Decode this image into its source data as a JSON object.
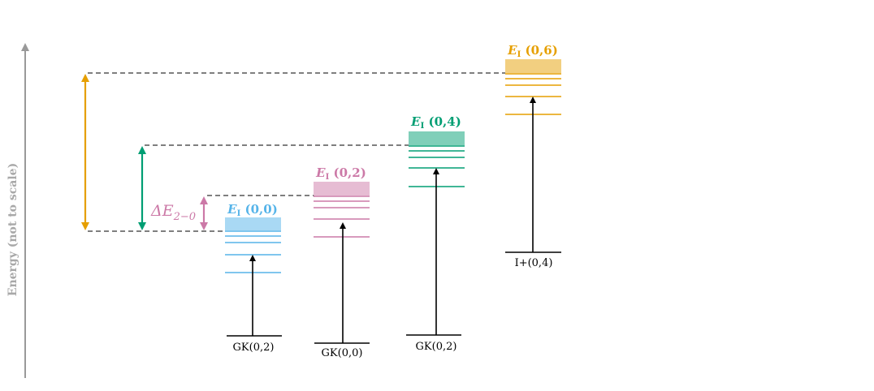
{
  "axis": {
    "ylabel": "Energy (not to scale)"
  },
  "colors": {
    "blue": "#56b4e9",
    "blue_fill": "#a9d9f4",
    "pink": "#cc79a7",
    "pink_fill": "#e6bcd3",
    "green": "#009e73",
    "green_fill": "#80cfb9",
    "orange": "#e69f00",
    "orange_fill": "#f2cf80",
    "axis": "#999999"
  },
  "states": [
    {
      "id": "e00",
      "label_main": "E",
      "label_sub": "I",
      "label_args": " (0,0)",
      "base_label": "GK(0,2)",
      "color": "#56b4e9",
      "fill": "#a9d9f4"
    },
    {
      "id": "e02",
      "label_main": "E",
      "label_sub": "I",
      "label_args": " (0,2)",
      "base_label": "GK(0,0)",
      "color": "#cc79a7",
      "fill": "#e6bcd3"
    },
    {
      "id": "e04",
      "label_main": "E",
      "label_sub": "I",
      "label_args": " (0,4)",
      "base_label": "GK(0,2)",
      "color": "#009e73",
      "fill": "#80cfb9"
    },
    {
      "id": "e06",
      "label_main": "E",
      "label_sub": "I",
      "label_args": " (0,6)",
      "base_label": "I+(0,4)",
      "color": "#e69f00",
      "fill": "#f2cf80"
    }
  ],
  "delta": {
    "label_main": "ΔE",
    "label_sub": "2−0",
    "color": "#cc79a7"
  }
}
